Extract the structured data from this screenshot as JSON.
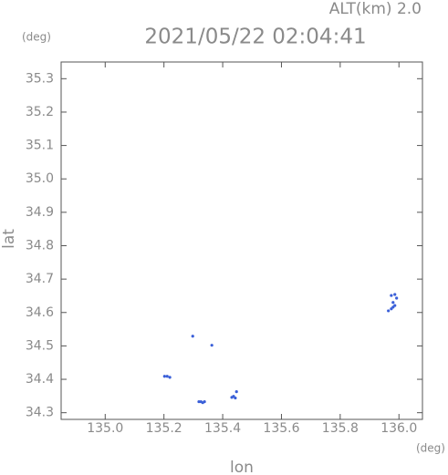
{
  "chart_data": {
    "type": "scatter",
    "title": "2021/05/22 02:04:41",
    "subtitle": "ALT(km) 2.0",
    "y_unit": "(deg)",
    "x_unit": "(deg)",
    "xlabel": "lon",
    "ylabel": "lat",
    "xlim": [
      134.85,
      136.08
    ],
    "ylim": [
      34.28,
      35.35
    ],
    "xticks": [
      {
        "value": 135.0,
        "label": "135.0"
      },
      135.2,
      135.4,
      135.6,
      135.8,
      {
        "value": 136.0,
        "label": "136.0"
      }
    ],
    "yticks": [
      34.3,
      34.4,
      34.5,
      34.6,
      34.7,
      34.8,
      34.9,
      {
        "value": 35.0,
        "label": "35.0"
      },
      35.1,
      35.2,
      35.3
    ],
    "series": [
      {
        "color": "#3a5fd8",
        "x": [
          135.298,
          135.363,
          135.202,
          135.211,
          135.22,
          135.319,
          135.326,
          135.332,
          135.338,
          135.431,
          135.437,
          135.443,
          135.447,
          135.974,
          135.986,
          135.992,
          135.98,
          135.986,
          135.964,
          135.974,
          135.98
        ],
        "values": [
          34.529,
          34.502,
          34.409,
          34.409,
          34.406,
          34.333,
          34.333,
          34.33,
          34.333,
          34.346,
          34.349,
          34.344,
          34.363,
          34.651,
          34.654,
          34.643,
          34.63,
          34.621,
          34.605,
          34.611,
          34.616
        ]
      }
    ]
  }
}
